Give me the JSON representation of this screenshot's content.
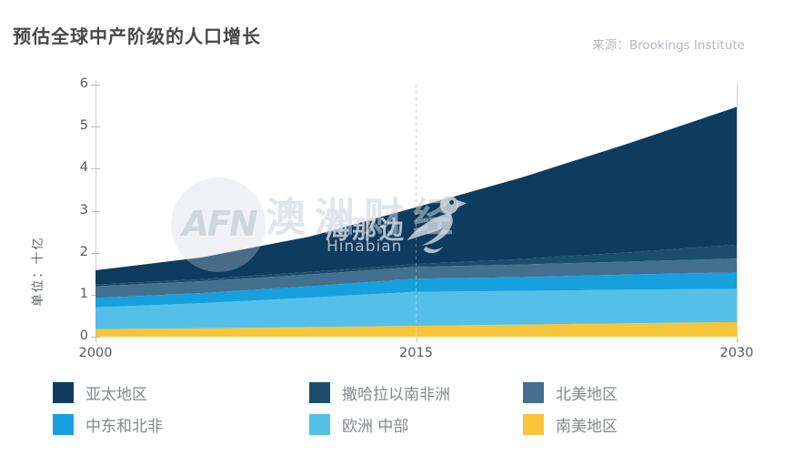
{
  "header": {
    "title": "预估全球中产阶级的人口增长",
    "source": "来源：Brookings Institute"
  },
  "watermark": {
    "badge_text": "AFN",
    "brand_cn": "澳洲财经",
    "logo_cn": "海那边",
    "logo_latin": "Hinabian",
    "bird_icon": "bird-logo-icon"
  },
  "chart_data": {
    "type": "area",
    "stacked": true,
    "title": "预估全球中产阶级的人口增长",
    "xlabel": "",
    "ylabel": "单位：十亿",
    "xlim": [
      2000,
      2030
    ],
    "ylim": [
      0,
      6
    ],
    "grid": "dashed vertical marker at x=2015",
    "legend_position": "bottom, 3 columns x 2 rows",
    "x": [
      2000,
      2005,
      2010,
      2015,
      2020,
      2025,
      2030
    ],
    "x_tick_labels": [
      "2000",
      "2015",
      "2030"
    ],
    "x_tick_years": [
      2000,
      2015,
      2030
    ],
    "y_tick_labels": [
      "0",
      "1",
      "2",
      "3",
      "4",
      "5",
      "6"
    ],
    "dashed_marker_year": 2015,
    "series_note": "values in billions of people, stacked bottom-to-top",
    "series": [
      {
        "name": "南美地区",
        "color": "#f6c53a",
        "values": [
          0.18,
          0.2,
          0.23,
          0.26,
          0.29,
          0.32,
          0.35
        ]
      },
      {
        "name": "欧洲 中部",
        "color": "#54c0e8",
        "values": [
          0.52,
          0.6,
          0.7,
          0.81,
          0.8,
          0.8,
          0.79
        ]
      },
      {
        "name": "中东和北非",
        "color": "#16a0dd",
        "values": [
          0.22,
          0.24,
          0.27,
          0.31,
          0.33,
          0.36,
          0.39
        ]
      },
      {
        "name": "北美地区",
        "color": "#44708f",
        "values": [
          0.28,
          0.28,
          0.28,
          0.28,
          0.3,
          0.31,
          0.33
        ]
      },
      {
        "name": "撒哈拉以南非洲",
        "color": "#1c4d6c",
        "values": [
          0.04,
          0.05,
          0.06,
          0.07,
          0.13,
          0.22,
          0.33
        ]
      },
      {
        "name": "亚太地区",
        "color": "#0e3c5e",
        "values": [
          0.34,
          0.52,
          0.84,
          1.35,
          1.95,
          2.6,
          3.28
        ]
      }
    ],
    "totals_by_tick_year": {
      "2000": 1.58,
      "2015": 3.08,
      "2030": 5.47
    },
    "legend": [
      {
        "label": "亚太地区",
        "color": "#0e3c5e"
      },
      {
        "label": "撒哈拉以南非洲",
        "color": "#1c4d6c"
      },
      {
        "label": "北美地区",
        "color": "#44708f"
      },
      {
        "label": "中东和北非",
        "color": "#16a0dd"
      },
      {
        "label": "欧洲 中部",
        "color": "#54c0e8"
      },
      {
        "label": "南美地区",
        "color": "#f6c53a"
      }
    ],
    "style_colors": {
      "axis_line": "#ccd0d5",
      "tick": "#b7bbc1",
      "tick_text": "#54585d",
      "title_text": "#474747",
      "source_text": "#b4b8be",
      "legend_text": "#83888f",
      "dashed_marker": "#a9aeb5"
    }
  }
}
